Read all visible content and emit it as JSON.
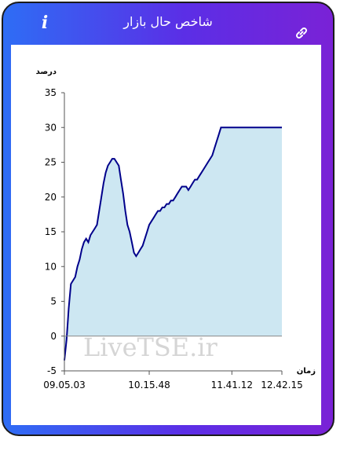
{
  "header": {
    "title": "شاخص حال بازار",
    "info_icon": "info-icon",
    "link_icon": "link-icon"
  },
  "watermark": "LiveTSE.ir",
  "colors": {
    "line": "#00008b",
    "fill": "#cde7f2",
    "accent_start": "#2e6df5",
    "accent_end": "#7a22d6"
  },
  "chart_data": {
    "type": "area",
    "ylabel": "درصد",
    "xlabel": "زمان",
    "ylim": [
      -5,
      35
    ],
    "yticks": [
      -5,
      0,
      5,
      10,
      15,
      20,
      25,
      30,
      35
    ],
    "xlim": [
      0,
      100
    ],
    "xtick_positions": [
      0,
      39,
      77,
      100
    ],
    "xtick_labels": [
      "09.05.03",
      "10.15.48",
      "11.41.12",
      "12.42.15"
    ],
    "grid": false,
    "x": [
      0,
      1,
      2,
      3,
      4,
      5,
      6,
      7,
      8,
      9,
      10,
      11,
      12,
      13,
      14,
      15,
      16,
      17,
      18,
      19,
      20,
      21,
      22,
      23,
      24,
      25,
      26,
      27,
      28,
      29,
      30,
      31,
      32,
      33,
      34,
      35,
      36,
      37,
      38,
      39,
      40,
      41,
      42,
      43,
      44,
      45,
      46,
      47,
      48,
      49,
      50,
      51,
      52,
      53,
      54,
      55,
      56,
      57,
      58,
      59,
      60,
      61,
      62,
      63,
      64,
      65,
      66,
      67,
      68,
      69,
      70,
      71,
      72,
      73,
      74,
      75,
      76,
      77,
      78,
      79,
      80,
      81,
      82,
      83,
      84,
      85,
      86,
      87,
      88,
      89,
      90,
      91,
      92,
      93,
      94,
      95,
      96,
      97,
      98,
      99,
      100
    ],
    "values": [
      -3.5,
      -0.5,
      4,
      7.5,
      8,
      8.5,
      10,
      11,
      12.5,
      13.5,
      14,
      13.5,
      14.5,
      15,
      15.5,
      16,
      18,
      20,
      22,
      23.5,
      24.5,
      25,
      25.5,
      25.5,
      25,
      24.5,
      22.5,
      20.5,
      18,
      16,
      15,
      13.5,
      12,
      11.5,
      12,
      12.5,
      13,
      14,
      15,
      16,
      16.5,
      17,
      17.5,
      18,
      18,
      18.5,
      18.5,
      19,
      19,
      19.5,
      19.5,
      20,
      20.5,
      21,
      21.5,
      21.5,
      21.5,
      21,
      21.5,
      22,
      22.5,
      22.5,
      23,
      23.5,
      24,
      24.5,
      25,
      25.5,
      26,
      27,
      28,
      29,
      30,
      30,
      30,
      30,
      30,
      30,
      30,
      30,
      30,
      30,
      30,
      30,
      30,
      30,
      30,
      30,
      30,
      30,
      30,
      30,
      30,
      30,
      30,
      30,
      30,
      30,
      30,
      30,
      30
    ]
  }
}
